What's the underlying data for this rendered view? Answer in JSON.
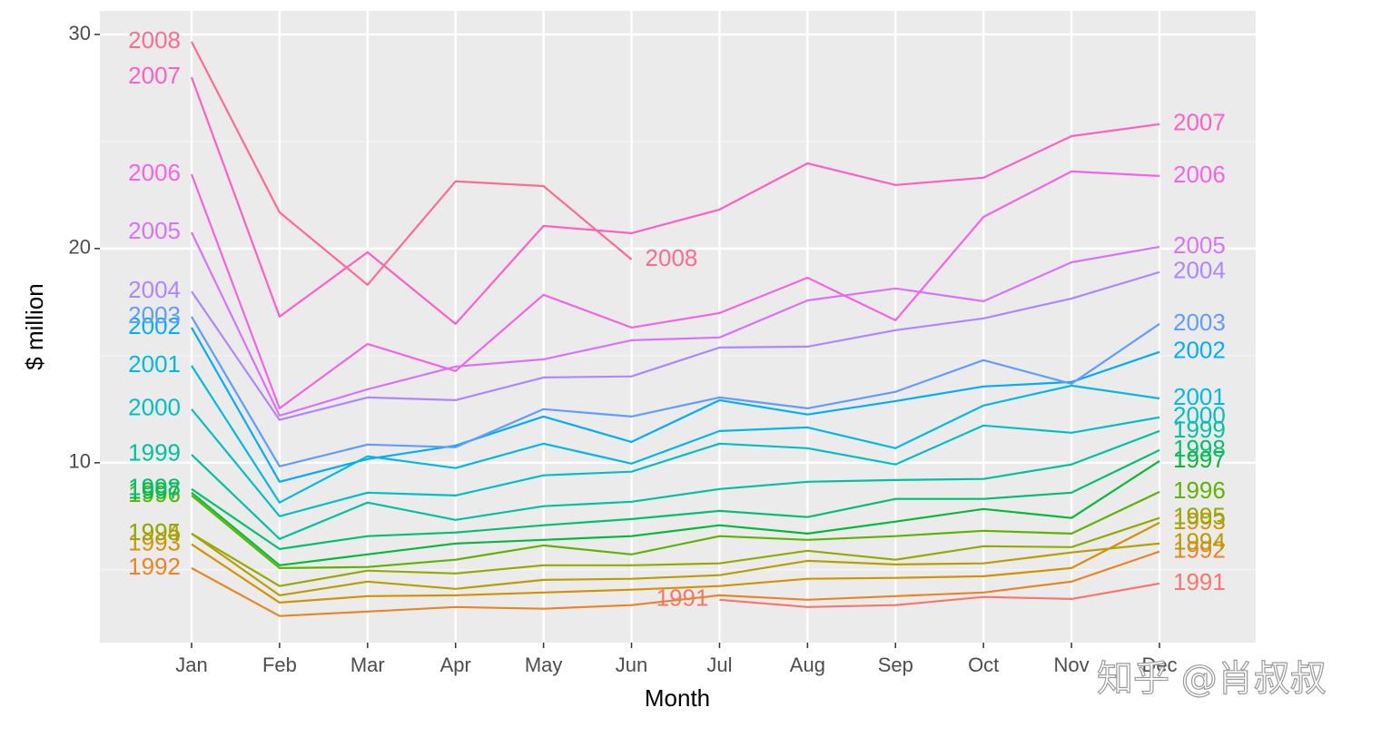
{
  "chart_data": {
    "type": "line",
    "x_label": "Month",
    "y_label": "$ million",
    "watermark": "知乎 @肖叔叔",
    "categories": [
      "Jan",
      "Feb",
      "Mar",
      "Apr",
      "May",
      "Jun",
      "Jul",
      "Aug",
      "Sep",
      "Oct",
      "Nov",
      "Dec"
    ],
    "ylim": [
      1.6,
      31.1
    ],
    "yticks": [
      10,
      20,
      30
    ],
    "grid": true,
    "series": [
      {
        "name": "1991",
        "color": "#F8766D",
        "values": [
          null,
          null,
          null,
          null,
          null,
          null,
          3.6,
          3.26,
          3.35,
          3.73,
          3.64,
          4.36
        ]
      },
      {
        "name": "1992",
        "color": "#E88526",
        "values": [
          5.08,
          2.84,
          3.05,
          3.26,
          3.18,
          3.35,
          3.81,
          3.6,
          3.77,
          3.94,
          4.45,
          5.85
        ]
      },
      {
        "name": "1993",
        "color": "#D39200",
        "values": [
          6.19,
          3.47,
          3.77,
          3.81,
          3.94,
          4.07,
          4.24,
          4.58,
          4.62,
          4.7,
          5.08,
          7.2
        ]
      },
      {
        "name": "1994",
        "color": "#B79F00",
        "values": [
          6.69,
          3.81,
          4.45,
          4.11,
          4.53,
          4.58,
          4.75,
          5.42,
          5.25,
          5.3,
          5.81,
          6.23
        ]
      },
      {
        "name": "1995",
        "color": "#93AA00",
        "values": [
          6.69,
          4.24,
          4.96,
          4.83,
          5.21,
          5.21,
          5.3,
          5.89,
          5.47,
          6.1,
          6.06,
          7.42
        ]
      },
      {
        "name": "1996",
        "color": "#5EB300",
        "values": [
          8.47,
          5.08,
          5.13,
          5.47,
          6.14,
          5.72,
          6.57,
          6.4,
          6.57,
          6.82,
          6.69,
          8.64
        ]
      },
      {
        "name": "1997",
        "color": "#00BA38",
        "values": [
          8.6,
          5.21,
          5.72,
          6.23,
          6.4,
          6.57,
          7.08,
          6.69,
          7.25,
          7.84,
          7.42,
          10.08
        ]
      },
      {
        "name": "1998",
        "color": "#00BF74",
        "values": [
          8.77,
          5.97,
          6.57,
          6.74,
          7.08,
          7.37,
          7.75,
          7.46,
          8.31,
          8.31,
          8.6,
          10.59
        ]
      },
      {
        "name": "1999",
        "color": "#00C19F",
        "values": [
          10.38,
          6.44,
          8.14,
          7.33,
          7.97,
          8.18,
          8.77,
          9.11,
          9.19,
          9.24,
          9.92,
          11.48
        ]
      },
      {
        "name": "2000",
        "color": "#00BFC4",
        "values": [
          12.5,
          7.5,
          8.6,
          8.47,
          9.41,
          9.58,
          10.89,
          10.68,
          9.92,
          11.74,
          11.4,
          12.12
        ]
      },
      {
        "name": "2001",
        "color": "#00B9E3",
        "values": [
          14.53,
          8.14,
          10.3,
          9.75,
          10.89,
          9.96,
          11.48,
          11.65,
          10.68,
          12.67,
          13.6,
          13.0
        ]
      },
      {
        "name": "2002",
        "color": "#00ADFA",
        "values": [
          16.31,
          9.11,
          10.17,
          10.8,
          12.16,
          10.97,
          12.92,
          12.25,
          12.88,
          13.56,
          13.77,
          15.17
        ]
      },
      {
        "name": "2003",
        "color": "#619CFF",
        "values": [
          16.82,
          9.83,
          10.85,
          10.72,
          12.5,
          12.16,
          13.05,
          12.54,
          13.31,
          14.79,
          13.69,
          16.48
        ]
      },
      {
        "name": "2004",
        "color": "#AE87FF",
        "values": [
          18.0,
          12.0,
          13.05,
          12.92,
          13.98,
          14.03,
          15.38,
          15.42,
          16.19,
          16.74,
          17.67,
          18.9
        ]
      },
      {
        "name": "2005",
        "color": "#DB72FB",
        "values": [
          20.76,
          12.2,
          13.43,
          14.49,
          14.83,
          15.72,
          15.85,
          17.58,
          18.14,
          17.54,
          19.36,
          20.08
        ]
      },
      {
        "name": "2006",
        "color": "#F564E3",
        "values": [
          23.47,
          12.54,
          15.55,
          14.28,
          17.84,
          16.31,
          16.99,
          18.64,
          16.65,
          21.48,
          23.6,
          23.39
        ]
      },
      {
        "name": "2007",
        "color": "#FF61C3",
        "values": [
          28.0,
          16.82,
          19.83,
          16.48,
          21.06,
          20.72,
          21.82,
          23.98,
          22.97,
          23.31,
          25.25,
          25.81
        ]
      },
      {
        "name": "2008",
        "color": "#FF6C91",
        "values": [
          29.66,
          21.69,
          18.31,
          23.14,
          22.92,
          19.49,
          null,
          null,
          null,
          null,
          null,
          null
        ]
      }
    ]
  }
}
